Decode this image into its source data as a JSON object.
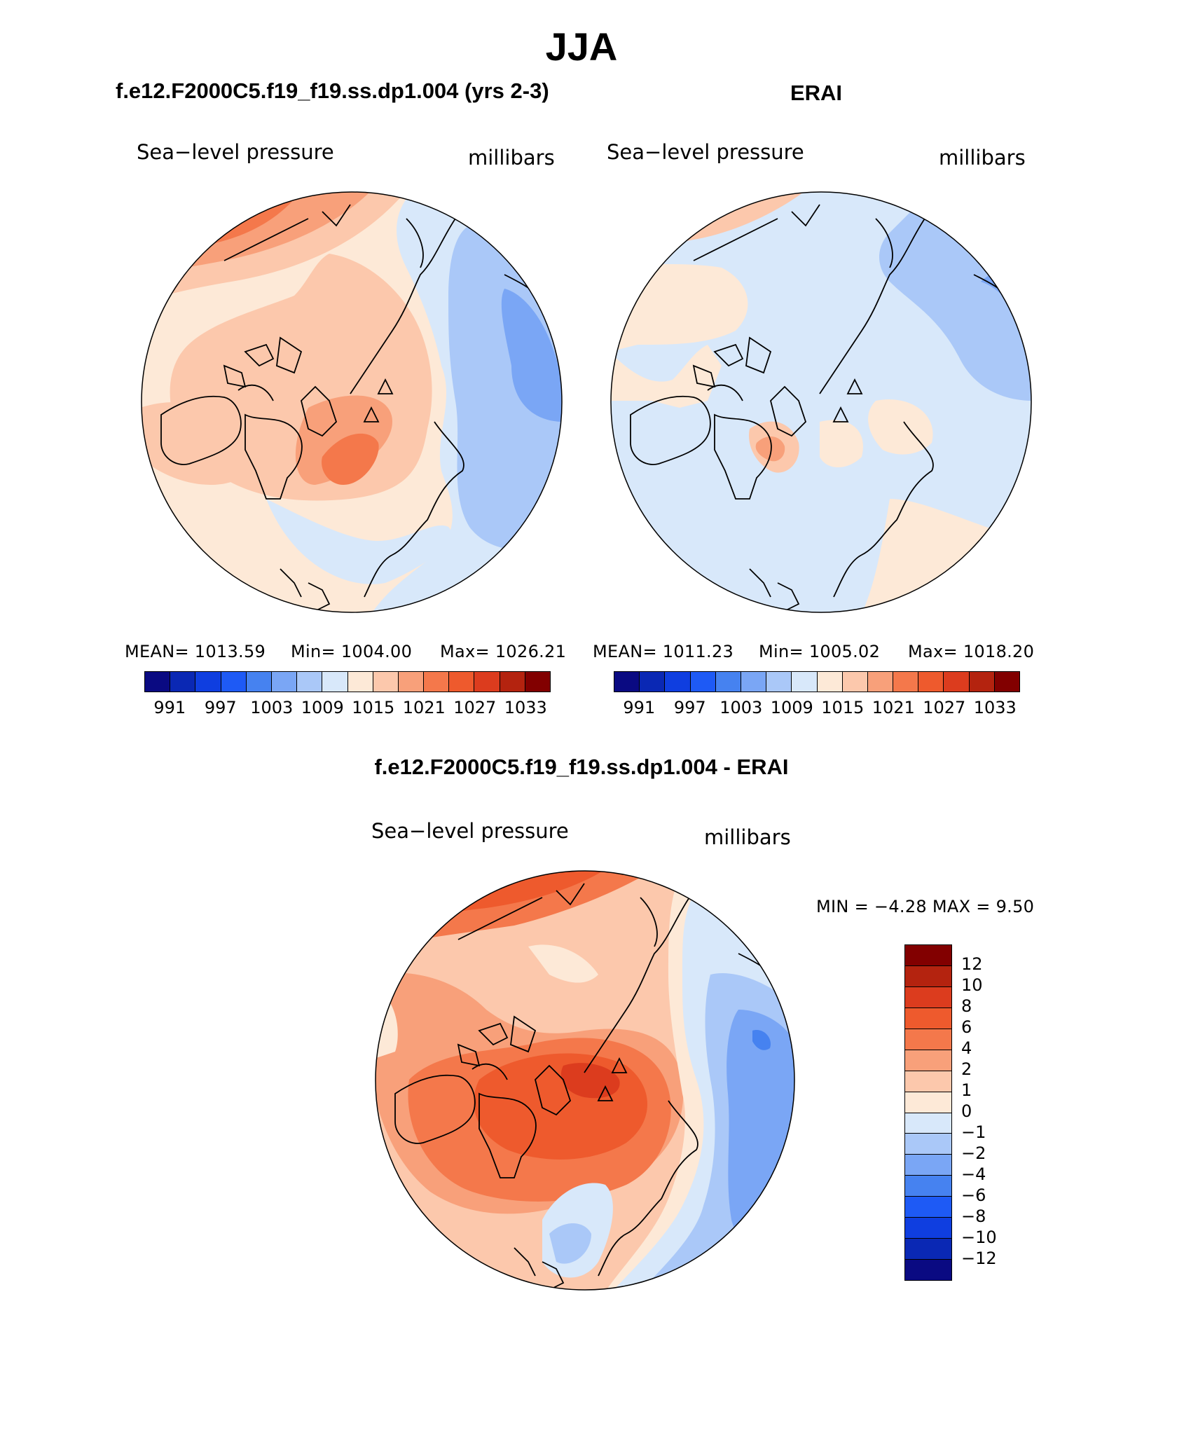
{
  "header": {
    "season": "JJA",
    "left_case": "f.e12.F2000C5.f19_f19.ss.dp1.004 (yrs 2-3)",
    "right_case": "ERAI",
    "diff_title": "f.e12.F2000C5.f19_f19.ss.dp1.004 - ERAI"
  },
  "panels": {
    "left": {
      "variable": "Sea−level pressure",
      "units": "millibars",
      "mean": "MEAN=  1013.59",
      "min": "Min=  1004.00",
      "max": "Max=  1026.21"
    },
    "right": {
      "variable": "Sea−level pressure",
      "units": "millibars",
      "mean": "MEAN=  1011.23",
      "min": "Min=  1005.02",
      "max": "Max=  1018.20"
    },
    "diff": {
      "variable": "Sea−level pressure",
      "units": "millibars",
      "minmax": "MIN =   −4.28 MAX =    9.50"
    }
  },
  "colorbar": {
    "ticks": [
      "991",
      "997",
      "1003",
      "1009",
      "1015",
      "1021",
      "1027",
      "1033"
    ],
    "colors": [
      "#0a0a82",
      "#0a28b4",
      "#0f3ee0",
      "#1e5af5",
      "#4682f0",
      "#7aa6f5",
      "#aac8f8",
      "#d8e8fa",
      "#fde9d7",
      "#fcc8ac",
      "#f8a07a",
      "#f4784b",
      "#ee5a2d",
      "#dc3c1e",
      "#b4230f",
      "#820000"
    ]
  },
  "diff_colorbar": {
    "ticks": [
      "12",
      "10",
      "8",
      "6",
      "4",
      "2",
      "1",
      "0",
      "−1",
      "−2",
      "−4",
      "−6",
      "−8",
      "−10",
      "−12"
    ],
    "colors": [
      "#820000",
      "#b4230f",
      "#dc3c1e",
      "#ee5a2d",
      "#f4784b",
      "#f8a07a",
      "#fcc8ac",
      "#fde9d7",
      "#d8e8fa",
      "#aac8f8",
      "#7aa6f5",
      "#4682f0",
      "#1e5af5",
      "#0f3ee0",
      "#0a28b4",
      "#0a0a82"
    ]
  },
  "chart_data": {
    "type": "heatmap",
    "title": "JJA",
    "projection": "polar stereographic, north pole",
    "panels": [
      {
        "name": "f.e12.F2000C5.f19_f19.ss.dp1.004 (yrs 2-3)",
        "variable": "Sea-level pressure",
        "units": "millibars",
        "mean": 1013.59,
        "min": 1004.0,
        "max": 1026.21,
        "levels": [
          991,
          994,
          997,
          1000,
          1003,
          1006,
          1009,
          1012,
          1015,
          1018,
          1021,
          1024,
          1027,
          1030,
          1033
        ]
      },
      {
        "name": "ERAI",
        "variable": "Sea-level pressure",
        "units": "millibars",
        "mean": 1011.23,
        "min": 1005.02,
        "max": 1018.2,
        "levels": [
          991,
          994,
          997,
          1000,
          1003,
          1006,
          1009,
          1012,
          1015,
          1018,
          1021,
          1024,
          1027,
          1030,
          1033
        ]
      },
      {
        "name": "f.e12.F2000C5.f19_f19.ss.dp1.004 - ERAI",
        "variable": "Sea-level pressure",
        "units": "millibars",
        "min": -4.28,
        "max": 9.5,
        "levels": [
          -12,
          -10,
          -8,
          -6,
          -4,
          -2,
          -1,
          0,
          1,
          2,
          4,
          6,
          8,
          10,
          12
        ]
      }
    ]
  }
}
